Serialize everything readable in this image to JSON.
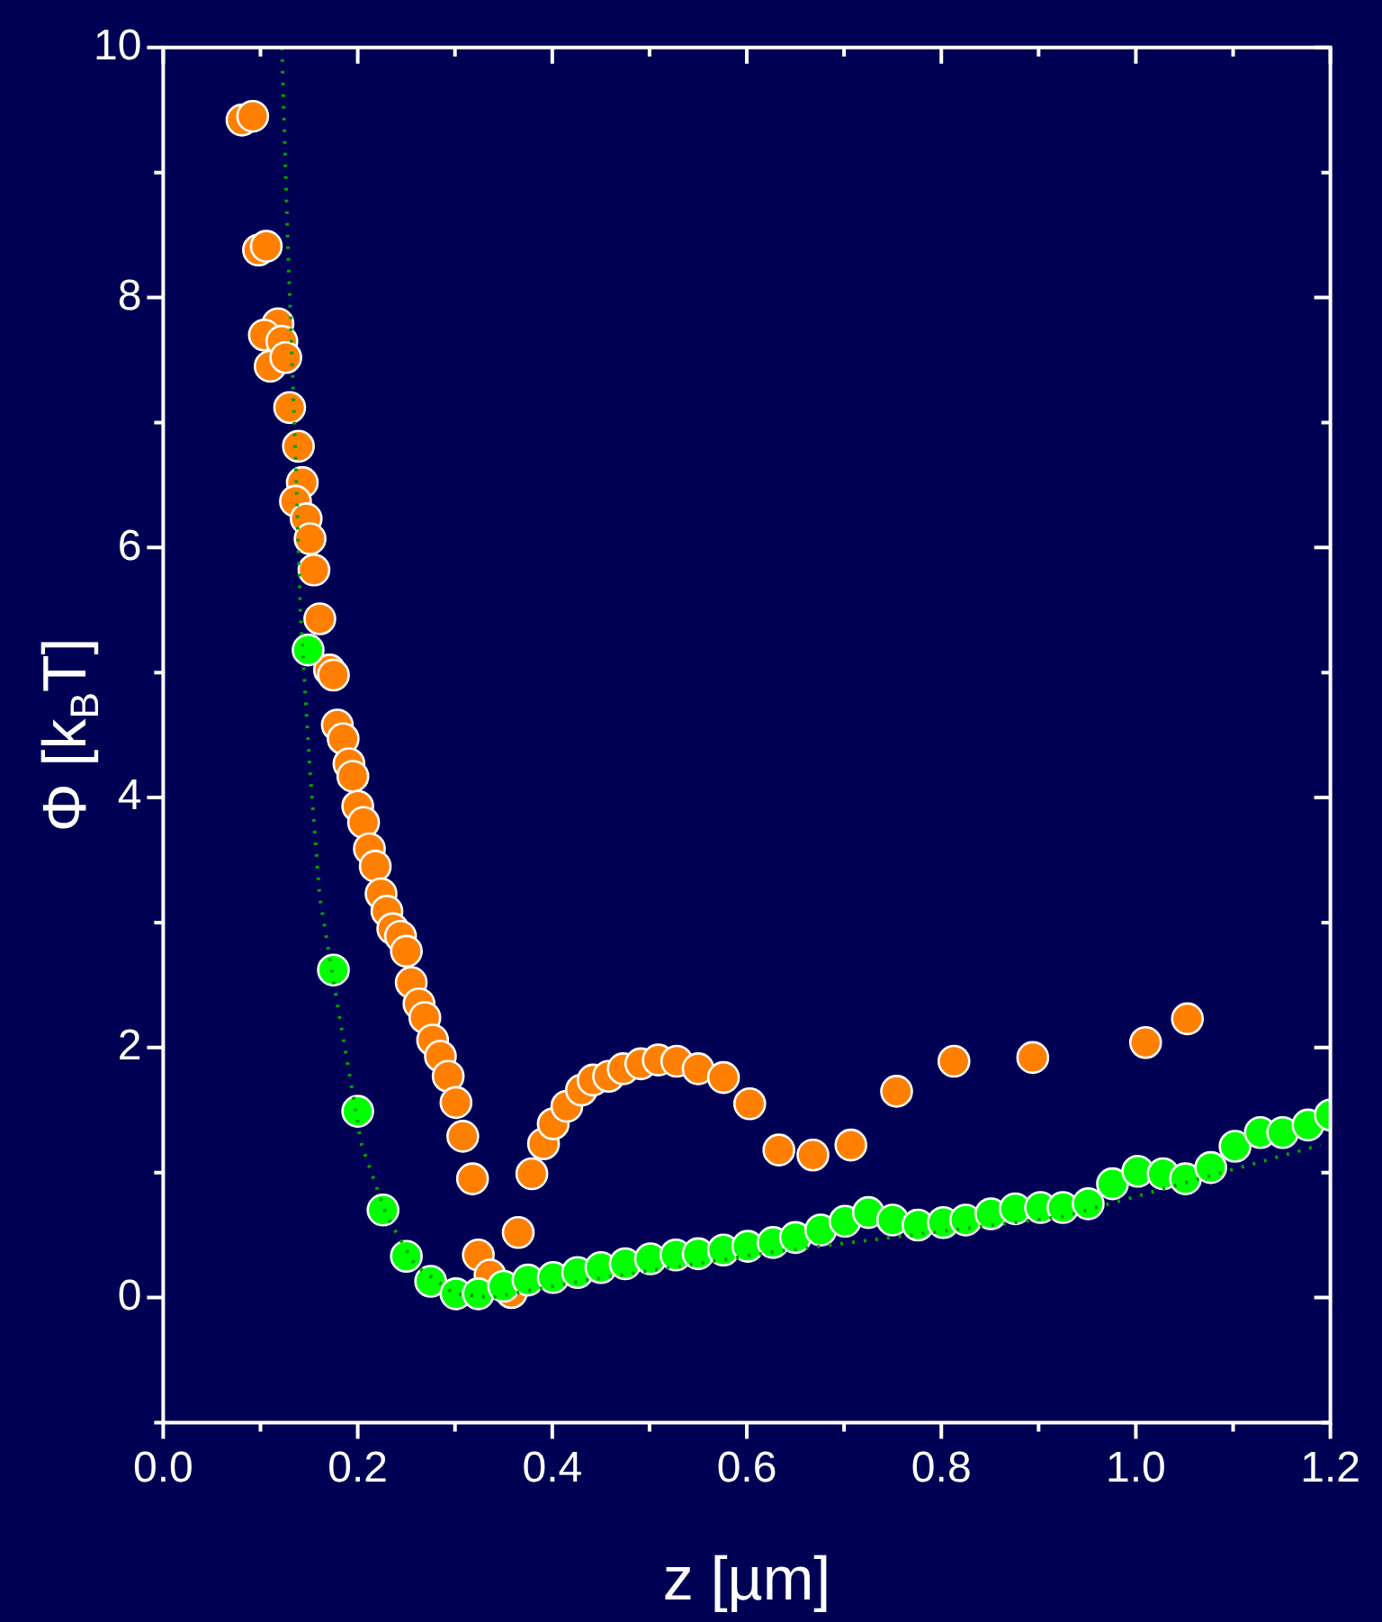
{
  "chart_data": {
    "type": "scatter",
    "xlabel": "z [µm]",
    "ylabel": "Φ [k$_{B}$T]",
    "xlim": [
      0,
      1.2
    ],
    "ylim": [
      -1,
      10
    ],
    "xticks": [
      {
        "value": 0,
        "label": "0.0"
      },
      {
        "value": 0.1,
        "label": null
      },
      {
        "value": 0.2,
        "label": "0.2"
      },
      {
        "value": 0.3,
        "label": null
      },
      {
        "value": 0.4,
        "label": "0.4"
      },
      {
        "value": 0.5,
        "label": null
      },
      {
        "value": 0.6,
        "label": "0.6"
      },
      {
        "value": 0.7,
        "label": null
      },
      {
        "value": 0.8,
        "label": "0.8"
      },
      {
        "value": 0.9,
        "label": null
      },
      {
        "value": 1.0,
        "label": "1.0"
      },
      {
        "value": 1.1,
        "label": null
      },
      {
        "value": 1.2,
        "label": "1.2"
      }
    ],
    "yticks": [
      {
        "value": -1,
        "label": null
      },
      0,
      {
        "value": 1,
        "label": null
      },
      2,
      {
        "value": 3,
        "label": null
      },
      4,
      {
        "value": 5,
        "label": null
      },
      6,
      {
        "value": 7,
        "label": null
      },
      8,
      {
        "value": 9,
        "label": null
      },
      10
    ],
    "grid": false,
    "legend": false,
    "marker": "circle",
    "series": [
      {
        "color": "#00a000",
        "type": "line",
        "marker": "none",
        "line_style": "dotted",
        "x": [
          0.122,
          0.128,
          0.136,
          0.141,
          0.151,
          0.161,
          0.179,
          0.204,
          0.23,
          0.259,
          0.299,
          0.338,
          0.436,
          0.633,
          0.927,
          1.19
        ],
        "values": [
          10,
          8.45,
          6.75,
          5.48,
          4.2,
          3.2,
          2.35,
          1.22,
          0.65,
          0.26,
          0.03,
          0.0,
          0.14,
          0.37,
          0.65,
          1.22
        ]
      },
      {
        "color": "#ff8000",
        "x": [
          0.081,
          0.092,
          0.098,
          0.106,
          0.118,
          0.104,
          0.122,
          0.11,
          0.126,
          0.13,
          0.139,
          0.143,
          0.136,
          0.147,
          0.151,
          0.155,
          0.161,
          0.171,
          0.175,
          0.179,
          0.185,
          0.191,
          0.195,
          0.2,
          0.206,
          0.212,
          0.218,
          0.224,
          0.23,
          0.236,
          0.244,
          0.25,
          0.255,
          0.263,
          0.269,
          0.277,
          0.285,
          0.293,
          0.301,
          0.308,
          0.318,
          0.324,
          0.336,
          0.358,
          0.365,
          0.379,
          0.391,
          0.401,
          0.415,
          0.43,
          0.442,
          0.458,
          0.473,
          0.491,
          0.509,
          0.528,
          0.55,
          0.576,
          0.603,
          0.633,
          0.668,
          0.707,
          0.754,
          0.813,
          0.894,
          1.01,
          1.053
        ],
        "values": [
          9.42,
          9.45,
          8.38,
          8.41,
          7.79,
          7.7,
          7.65,
          7.45,
          7.52,
          7.12,
          6.81,
          6.52,
          6.37,
          6.23,
          6.07,
          5.82,
          5.43,
          5.02,
          4.98,
          4.58,
          4.47,
          4.27,
          4.17,
          3.93,
          3.8,
          3.59,
          3.45,
          3.23,
          3.09,
          2.95,
          2.89,
          2.77,
          2.52,
          2.35,
          2.24,
          2.06,
          1.93,
          1.77,
          1.56,
          1.29,
          0.95,
          0.34,
          0.18,
          0.04,
          0.52,
          0.99,
          1.23,
          1.39,
          1.53,
          1.66,
          1.74,
          1.77,
          1.83,
          1.87,
          1.9,
          1.89,
          1.83,
          1.76,
          1.55,
          1.18,
          1.14,
          1.22,
          1.65,
          1.89,
          1.92,
          2.04,
          2.23
        ]
      },
      {
        "color": "#00ff00",
        "x": [
          0.149,
          0.175,
          0.2,
          0.226,
          0.25,
          0.275,
          0.301,
          0.324,
          0.35,
          0.375,
          0.401,
          0.426,
          0.45,
          0.475,
          0.501,
          0.527,
          0.55,
          0.576,
          0.601,
          0.627,
          0.65,
          0.676,
          0.701,
          0.725,
          0.75,
          0.776,
          0.802,
          0.825,
          0.851,
          0.876,
          0.902,
          0.925,
          0.951,
          0.976,
          1.002,
          1.028,
          1.051,
          1.077,
          1.102,
          1.128,
          1.151,
          1.177,
          1.2
        ],
        "values": [
          5.18,
          2.62,
          1.49,
          0.7,
          0.33,
          0.13,
          0.03,
          0.03,
          0.09,
          0.14,
          0.16,
          0.2,
          0.24,
          0.27,
          0.31,
          0.34,
          0.35,
          0.38,
          0.41,
          0.44,
          0.48,
          0.54,
          0.61,
          0.68,
          0.62,
          0.58,
          0.6,
          0.62,
          0.67,
          0.71,
          0.72,
          0.72,
          0.75,
          0.91,
          1.01,
          0.99,
          0.95,
          1.04,
          1.21,
          1.32,
          1.32,
          1.38,
          1.46
        ]
      }
    ]
  }
}
